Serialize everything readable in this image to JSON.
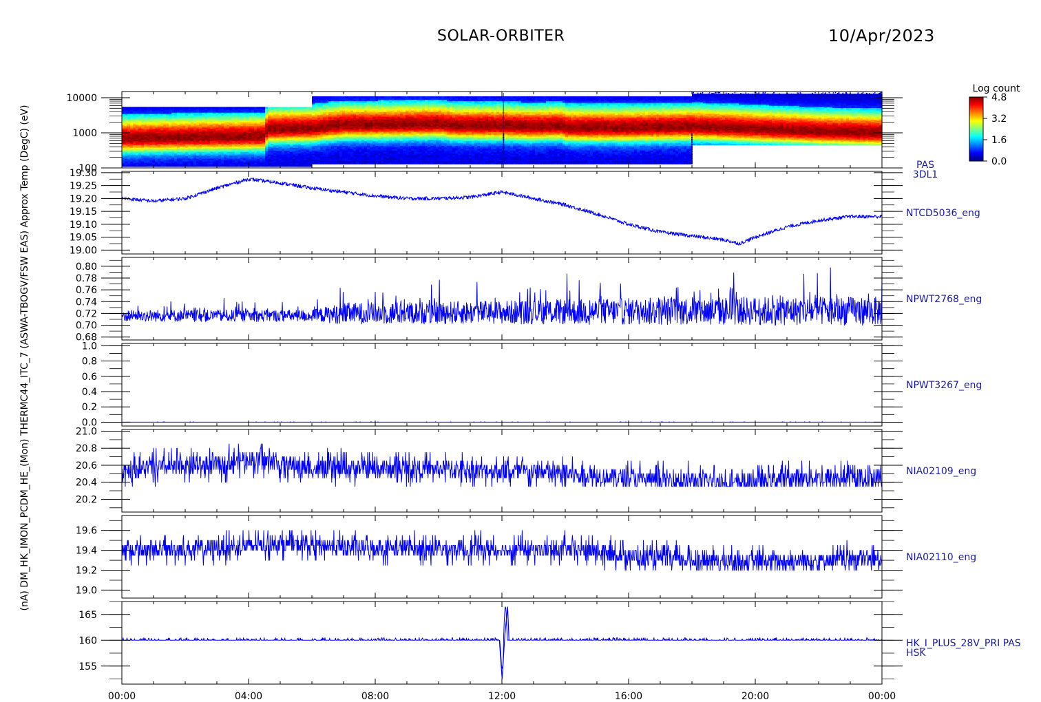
{
  "header": {
    "title": "SOLAR-ORBITER",
    "date": "10/Apr/2023"
  },
  "colors": {
    "trace": "#0000ff",
    "label": "#1a1aa6",
    "axis": "#000000"
  },
  "colorbar": {
    "title": "Log count",
    "ticks": [
      "4.8",
      "3.2",
      "1.6",
      "0.0"
    ],
    "range": [
      0.0,
      4.8
    ]
  },
  "x_ticks": [
    "00:00",
    "04:00",
    "08:00",
    "12:00",
    "16:00",
    "20:00",
    "00:00"
  ],
  "y_title_overlap": "(nA) DM_HK_IMON_PCDM_HE_(Mon) THERMC44_ITC_7 (ASWA-TBOGV/FSW EAS) Approx Temp (DegC) (eV)",
  "chart_data": [
    {
      "id": "pas-spectrogram",
      "type": "heatmap",
      "ylabel": "(eV)",
      "yscale": "log",
      "ylim": [
        100,
        15000
      ],
      "y_tick_labels": [
        "10000",
        "1000",
        "100"
      ],
      "y_tick_values": [
        10000,
        1000,
        100
      ],
      "right_label": [
        "PAS",
        "3DL1"
      ],
      "peak_energy_eV": [
        [
          0,
          700
        ],
        [
          4.5,
          800
        ],
        [
          4.6,
          1300
        ],
        [
          6,
          1350
        ],
        [
          7,
          1700
        ],
        [
          8,
          1700
        ],
        [
          10,
          1800
        ],
        [
          10.5,
          1600
        ],
        [
          12,
          1600
        ],
        [
          13,
          1500
        ],
        [
          13.9,
          1600
        ],
        [
          14,
          1400
        ],
        [
          16,
          1400
        ],
        [
          18,
          1500
        ],
        [
          20,
          1300
        ],
        [
          22,
          1100
        ],
        [
          24,
          1000
        ]
      ],
      "bands": [
        {
          "x": [
            0,
            4.55
          ],
          "ylim": [
            110,
            5500
          ]
        },
        {
          "x": [
            4.55,
            6.0
          ],
          "ylim": [
            110,
            5500
          ]
        },
        {
          "x": [
            6.0,
            18.0
          ],
          "ylim": [
            130,
            11000
          ]
        },
        {
          "x": [
            18.0,
            24.0
          ],
          "ylim": [
            450,
            13000
          ]
        }
      ]
    },
    {
      "id": "ntcd5036",
      "type": "line",
      "ylim": [
        18.985,
        19.305
      ],
      "y_tick_labels": [
        "19.30",
        "19.25",
        "19.20",
        "19.15",
        "19.10",
        "19.05",
        "19.00"
      ],
      "y_tick_values": [
        19.3,
        19.25,
        19.2,
        19.15,
        19.1,
        19.05,
        19.0
      ],
      "right_label": [
        "NTCD5036_eng"
      ],
      "x": [
        0,
        1,
        2,
        3,
        4,
        5,
        6,
        7,
        8,
        9,
        10,
        11,
        12,
        13,
        14,
        15,
        16,
        17,
        18,
        19,
        19.5,
        20,
        21,
        22,
        23,
        24
      ],
      "y": [
        19.2,
        19.19,
        19.2,
        19.24,
        19.275,
        19.26,
        19.24,
        19.225,
        19.21,
        19.2,
        19.2,
        19.205,
        19.225,
        19.2,
        19.175,
        19.14,
        19.1,
        19.07,
        19.055,
        19.04,
        19.025,
        19.05,
        19.09,
        19.115,
        19.13,
        19.13
      ],
      "noise": 0.007
    },
    {
      "id": "npwt2768",
      "type": "line",
      "ylim": [
        0.675,
        0.815
      ],
      "y_tick_labels": [
        "0.80",
        "0.78",
        "0.76",
        "0.74",
        "0.72",
        "0.70",
        "0.68"
      ],
      "y_tick_values": [
        0.8,
        0.78,
        0.76,
        0.74,
        0.72,
        0.7,
        0.68
      ],
      "right_label": [
        "NPWT2768_eng"
      ],
      "x": [
        0,
        6,
        7,
        12,
        18,
        24
      ],
      "y": [
        0.716,
        0.716,
        0.72,
        0.722,
        0.724,
        0.724
      ],
      "spread": [
        0.01,
        0.01,
        0.018,
        0.02,
        0.024,
        0.024
      ]
    },
    {
      "id": "npwt3267",
      "type": "line",
      "ylim": [
        -0.05,
        1.03
      ],
      "y_tick_labels": [
        "1.0",
        "0.8",
        "0.6",
        "0.4",
        "0.2",
        "0.0"
      ],
      "y_tick_values": [
        1.0,
        0.8,
        0.6,
        0.4,
        0.2,
        0.0
      ],
      "right_label": [
        "NPWT3267_eng"
      ],
      "x": [
        0,
        24
      ],
      "y": [
        0.0,
        0.0
      ]
    },
    {
      "id": "nia02109",
      "type": "line",
      "ylim": [
        20.05,
        21.02
      ],
      "y_tick_labels": [
        "21.0",
        "20.8",
        "20.6",
        "20.4",
        "20.2"
      ],
      "y_tick_values": [
        21.0,
        20.8,
        20.6,
        20.4,
        20.2
      ],
      "right_label": [
        "NIA02109_eng"
      ],
      "x": [
        0,
        3,
        4,
        6,
        10,
        14,
        16,
        18,
        19.5,
        21,
        24
      ],
      "y": [
        20.55,
        20.6,
        20.68,
        20.56,
        20.56,
        20.5,
        20.45,
        20.42,
        20.38,
        20.45,
        20.45
      ],
      "levels": [
        20.35,
        20.4,
        20.45,
        20.5,
        20.55,
        20.6,
        20.65,
        20.7,
        20.75,
        20.8,
        20.85
      ],
      "spread": 0.1
    },
    {
      "id": "nia02110",
      "type": "line",
      "ylim": [
        18.92,
        19.75
      ],
      "y_tick_labels": [
        "19.6",
        "19.4",
        "19.2",
        "19.0"
      ],
      "y_tick_values": [
        19.6,
        19.4,
        19.2,
        19.0
      ],
      "right_label": [
        "NIA02110_eng"
      ],
      "x": [
        0,
        3,
        5,
        8,
        14.5,
        16.5,
        20,
        24
      ],
      "y": [
        19.4,
        19.42,
        19.47,
        19.42,
        19.4,
        19.32,
        19.28,
        19.32
      ],
      "levels": [
        19.2,
        19.25,
        19.3,
        19.35,
        19.4,
        19.45,
        19.5,
        19.55,
        19.6
      ],
      "spread": 0.08
    },
    {
      "id": "hk-i-plus-28v",
      "type": "line",
      "ylim": [
        151.5,
        167.5
      ],
      "y_tick_labels": [
        "165",
        "160",
        "155"
      ],
      "y_tick_values": [
        165,
        160,
        155
      ],
      "right_label": [
        "HK_I_PLUS_28V_PRI PAS",
        "HSK"
      ],
      "x": [
        0,
        24
      ],
      "y": [
        160.0,
        160.0
      ],
      "spike": {
        "x": 12.05,
        "ymax": 166.5,
        "ymin": 152.5
      }
    }
  ]
}
